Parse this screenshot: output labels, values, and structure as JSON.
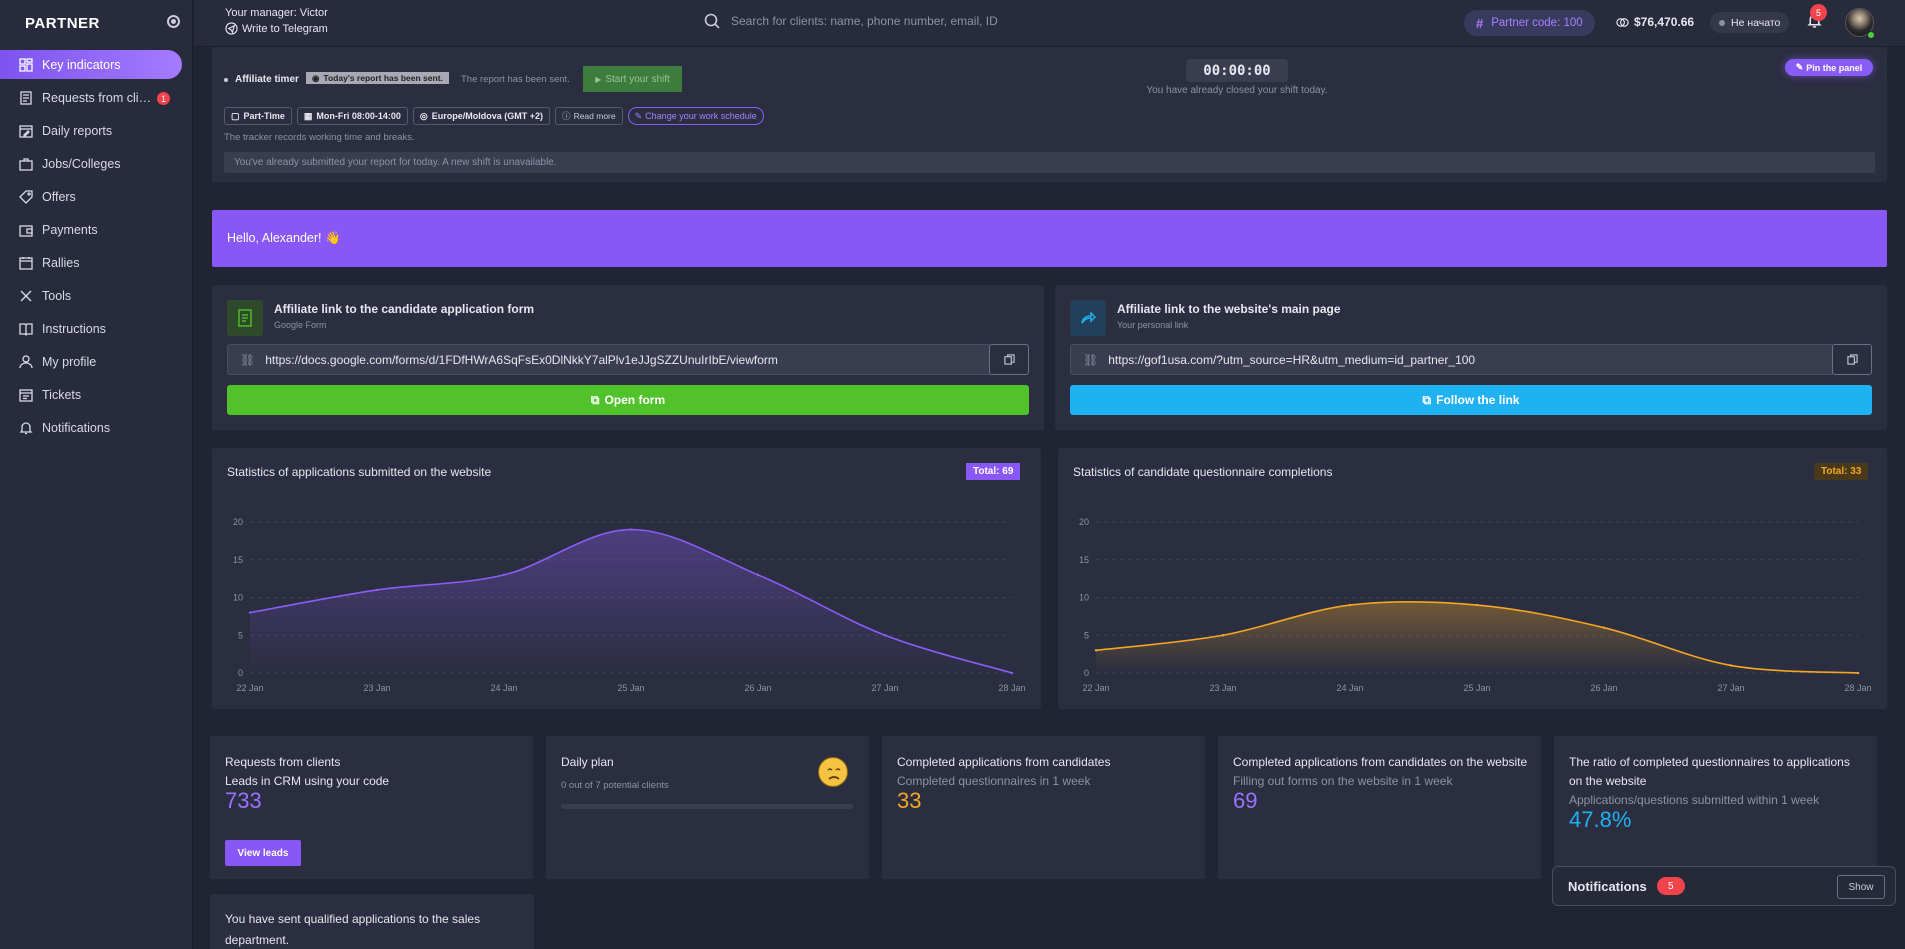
{
  "sidebar": {
    "logo": "PARTNER",
    "items": [
      {
        "label": "Key indicators",
        "icon": "dashboard-icon",
        "active": true
      },
      {
        "label": "Requests from clients",
        "icon": "document-list-icon",
        "badge": "1"
      },
      {
        "label": "Daily reports",
        "icon": "calendar-edit-icon"
      },
      {
        "label": "Jobs/Colleges",
        "icon": "briefcase-icon"
      },
      {
        "label": "Offers",
        "icon": "tag-icon"
      },
      {
        "label": "Payments",
        "icon": "wallet-icon"
      },
      {
        "label": "Rallies",
        "icon": "calendar-icon"
      },
      {
        "label": "Tools",
        "icon": "tools-icon"
      },
      {
        "label": "Instructions",
        "icon": "book-icon"
      },
      {
        "label": "My profile",
        "icon": "user-icon"
      },
      {
        "label": "Tickets",
        "icon": "ticket-icon"
      },
      {
        "label": "Notifications",
        "icon": "bell-icon"
      }
    ]
  },
  "topbar": {
    "manager": "Your manager: Victor",
    "telegram": "Write to Telegram",
    "search_placeholder": "Search for clients: name, phone number, email, ID",
    "partner_code": "Partner code: 100",
    "balance": "$76,470.66",
    "status": "Не начато",
    "notifications_count": "5"
  },
  "timer": {
    "label": "Affiliate timer",
    "badge": "Today's report has been sent.",
    "sent_text": "The report has been sent.",
    "start_button": "Start your shift",
    "clock": "00:00:00",
    "closed_text": "You have already closed your shift today.",
    "pin_button": "Pin the panel",
    "chips": [
      "Part-Time",
      "Mon-Fri 08:00-14:00",
      "Europe/Moldova (GMT +2)"
    ],
    "read_more": "Read more",
    "change_schedule": "Change your work schedule",
    "note": "The tracker records working time and breaks.",
    "submitted": "You've already submitted your report for today. A new shift is unavailable."
  },
  "hello": "Hello, Alexander! 👋",
  "links": [
    {
      "title": "Affiliate link to the candidate application form",
      "subtitle": "Google Form",
      "url": "https://docs.google.com/forms/d/1FDfHWrA6SqFsEx0DlNkkY7alPlv1eJJgSZZUnuIrIbE/viewform",
      "button": "Open form",
      "color": "#52c22a"
    },
    {
      "title": "Affiliate link to the website's main page",
      "subtitle": "Your personal link",
      "url": "https://gof1usa.com/?utm_source=HR&utm_medium=id_partner_100",
      "button": "Follow the link",
      "color": "#1fb1f2"
    }
  ],
  "charts": {
    "left": {
      "title": "Statistics of applications submitted on the website",
      "total": "Total: 69"
    },
    "right": {
      "title": "Statistics of candidate questionnaire completions",
      "total": "Total: 33"
    }
  },
  "chart_data": [
    {
      "type": "area",
      "title": "Statistics of applications submitted on the website",
      "categories": [
        "22 Jan",
        "23 Jan",
        "24 Jan",
        "25 Jan",
        "26 Jan",
        "27 Jan",
        "28 Jan"
      ],
      "values": [
        8,
        11,
        13,
        19,
        13,
        5,
        0
      ],
      "ylim": [
        0,
        20
      ],
      "yticks": [
        0,
        5,
        10,
        15,
        20
      ],
      "color": "#8b5cf6",
      "grid": true
    },
    {
      "type": "area",
      "title": "Statistics of candidate questionnaire completions",
      "categories": [
        "22 Jan",
        "23 Jan",
        "24 Jan",
        "25 Jan",
        "26 Jan",
        "27 Jan",
        "28 Jan"
      ],
      "values": [
        3,
        5,
        9,
        9,
        6,
        1,
        0
      ],
      "ylim": [
        0,
        20
      ],
      "yticks": [
        0,
        5,
        10,
        15,
        20
      ],
      "color": "#f5a623",
      "grid": true
    }
  ],
  "stats": [
    {
      "title": "Requests from clients",
      "subtitle": "Leads in CRM using your code",
      "value": "733",
      "button": "View leads"
    },
    {
      "title": "Daily plan",
      "subtitle": "0 out of 7 potential clients",
      "progress": 0
    },
    {
      "title": "Completed applications from candidates",
      "subtitle": "Completed questionnaires in 1 week",
      "value": "33"
    },
    {
      "title": "Completed applications from candidates on the website",
      "subtitle": "Filling out forms on the website in 1 week",
      "value": "69"
    },
    {
      "title": "The ratio of completed questionnaires to applications on the website",
      "subtitle": "Applications/questions submitted within 1 week",
      "value": "47.8%"
    }
  ],
  "notifications_panel": {
    "title": "Notifications",
    "count": "5",
    "show": "Show"
  },
  "sent_card": "You have sent qualified applications to the sales department."
}
